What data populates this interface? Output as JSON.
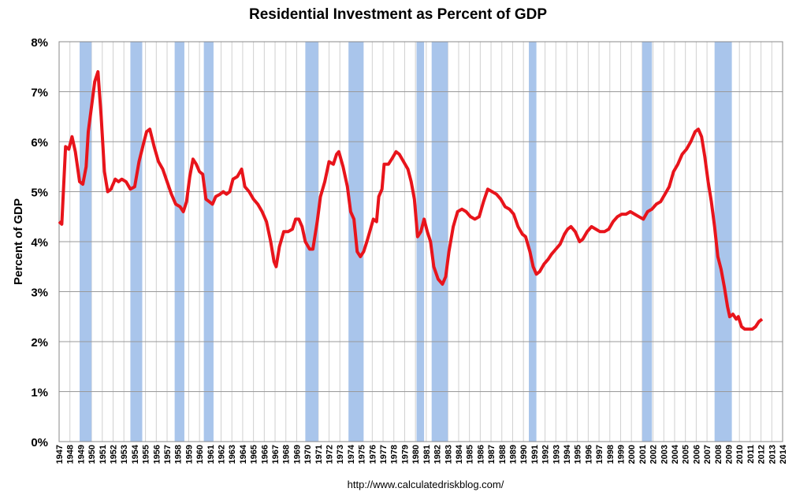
{
  "chart_data": {
    "type": "line",
    "title": "Residential Investment as Percent of GDP",
    "y_label": "Percent of GDP",
    "source": "http://www.calculatedriskblog.com/",
    "color": "#e8141b",
    "band_color": "#a9c5eb",
    "grid": true,
    "xlim": [
      1947,
      2014
    ],
    "ylim": [
      0,
      8
    ],
    "yticks": [
      {
        "value": 0,
        "label": "0%"
      },
      {
        "value": 1,
        "label": "1%"
      },
      {
        "value": 2,
        "label": "2%"
      },
      {
        "value": 3,
        "label": "3%"
      },
      {
        "value": 4,
        "label": "4%"
      },
      {
        "value": 5,
        "label": "5%"
      },
      {
        "value": 6,
        "label": "6%"
      },
      {
        "value": 7,
        "label": "7%"
      },
      {
        "value": 8,
        "label": "8%"
      }
    ],
    "xticks": [
      1947,
      1948,
      1949,
      1950,
      1951,
      1952,
      1953,
      1954,
      1955,
      1956,
      1957,
      1958,
      1959,
      1960,
      1961,
      1962,
      1963,
      1964,
      1965,
      1966,
      1967,
      1968,
      1969,
      1970,
      1971,
      1972,
      1973,
      1974,
      1975,
      1976,
      1977,
      1978,
      1979,
      1980,
      1981,
      1982,
      1983,
      1984,
      1985,
      1986,
      1987,
      1988,
      1989,
      1990,
      1991,
      1992,
      1993,
      1994,
      1995,
      1996,
      1997,
      1998,
      1999,
      2000,
      2001,
      2002,
      2003,
      2004,
      2005,
      2006,
      2007,
      2008,
      2009,
      2010,
      2011,
      2012,
      2013,
      2014
    ],
    "recessions": [
      [
        1948.9,
        1950.0
      ],
      [
        1953.6,
        1954.7
      ],
      [
        1957.7,
        1958.6
      ],
      [
        1960.4,
        1961.3
      ],
      [
        1969.8,
        1971.0
      ],
      [
        1973.8,
        1975.2
      ],
      [
        1980.1,
        1980.8
      ],
      [
        1981.5,
        1983.0
      ],
      [
        1990.5,
        1991.2
      ],
      [
        2001.0,
        2001.9
      ],
      [
        2007.7,
        2009.3
      ]
    ],
    "x": [
      1947.0,
      1947.25,
      1947.6,
      1947.9,
      1948.2,
      1948.5,
      1948.9,
      1949.2,
      1949.5,
      1949.7,
      1950.0,
      1950.3,
      1950.6,
      1950.9,
      1951.2,
      1951.5,
      1951.8,
      1952.2,
      1952.5,
      1952.8,
      1953.2,
      1953.6,
      1954.0,
      1954.4,
      1954.8,
      1955.1,
      1955.4,
      1955.8,
      1956.2,
      1956.6,
      1957.0,
      1957.4,
      1957.8,
      1958.2,
      1958.5,
      1958.8,
      1959.1,
      1959.4,
      1959.7,
      1960.0,
      1960.3,
      1960.6,
      1960.9,
      1961.2,
      1961.5,
      1961.9,
      1962.2,
      1962.5,
      1962.8,
      1963.1,
      1963.5,
      1963.9,
      1964.2,
      1964.6,
      1965.0,
      1965.4,
      1965.8,
      1966.2,
      1966.6,
      1966.9,
      1967.1,
      1967.4,
      1967.8,
      1968.2,
      1968.6,
      1968.9,
      1969.2,
      1969.5,
      1969.8,
      1970.2,
      1970.5,
      1970.9,
      1971.2,
      1971.6,
      1972.0,
      1972.4,
      1972.7,
      1972.9,
      1973.3,
      1973.7,
      1974.0,
      1974.3,
      1974.6,
      1974.9,
      1975.2,
      1975.5,
      1975.9,
      1976.1,
      1976.4,
      1976.6,
      1976.9,
      1977.1,
      1977.5,
      1977.8,
      1978.2,
      1978.5,
      1978.9,
      1979.3,
      1979.6,
      1979.9,
      1980.2,
      1980.5,
      1980.8,
      1981.1,
      1981.4,
      1981.7,
      1982.1,
      1982.5,
      1982.8,
      1983.1,
      1983.5,
      1983.9,
      1984.3,
      1984.7,
      1985.1,
      1985.5,
      1985.9,
      1986.3,
      1986.7,
      1987.1,
      1987.5,
      1987.9,
      1988.3,
      1988.7,
      1989.1,
      1989.5,
      1989.9,
      1990.2,
      1990.6,
      1990.9,
      1991.2,
      1991.5,
      1991.9,
      1992.3,
      1992.6,
      1993.0,
      1993.4,
      1993.8,
      1994.1,
      1994.4,
      1994.8,
      1995.2,
      1995.5,
      1995.9,
      1996.3,
      1996.7,
      1997.1,
      1997.5,
      1997.9,
      1998.3,
      1998.7,
      1999.1,
      1999.5,
      1999.9,
      2000.3,
      2000.7,
      2001.1,
      2001.5,
      2001.9,
      2002.3,
      2002.7,
      2003.1,
      2003.5,
      2003.9,
      2004.3,
      2004.7,
      2005.1,
      2005.5,
      2005.9,
      2006.2,
      2006.5,
      2006.8,
      2007.1,
      2007.4,
      2007.7,
      2008.0,
      2008.3,
      2008.6,
      2008.9,
      2009.1,
      2009.4,
      2009.7,
      2009.9,
      2010.2,
      2010.5,
      2010.8,
      2011.2,
      2011.5,
      2011.8,
      2012.1
    ],
    "values": [
      4.4,
      4.35,
      5.9,
      5.85,
      6.1,
      5.8,
      5.2,
      5.15,
      5.5,
      6.2,
      6.7,
      7.2,
      7.4,
      6.5,
      5.4,
      5.0,
      5.05,
      5.25,
      5.2,
      5.25,
      5.2,
      5.05,
      5.1,
      5.6,
      5.95,
      6.2,
      6.25,
      5.9,
      5.6,
      5.45,
      5.2,
      4.95,
      4.75,
      4.7,
      4.6,
      4.8,
      5.3,
      5.65,
      5.55,
      5.4,
      5.35,
      4.85,
      4.8,
      4.75,
      4.9,
      4.95,
      5.0,
      4.95,
      5.0,
      5.25,
      5.3,
      5.45,
      5.1,
      5.0,
      4.85,
      4.75,
      4.6,
      4.4,
      4.0,
      3.6,
      3.5,
      3.9,
      4.2,
      4.2,
      4.25,
      4.45,
      4.45,
      4.3,
      4.0,
      3.85,
      3.85,
      4.4,
      4.9,
      5.2,
      5.6,
      5.55,
      5.75,
      5.8,
      5.5,
      5.1,
      4.6,
      4.45,
      3.8,
      3.7,
      3.8,
      4.0,
      4.3,
      4.45,
      4.4,
      4.9,
      5.05,
      5.55,
      5.55,
      5.65,
      5.8,
      5.75,
      5.6,
      5.45,
      5.2,
      4.85,
      4.1,
      4.2,
      4.45,
      4.2,
      4.0,
      3.5,
      3.25,
      3.15,
      3.3,
      3.8,
      4.3,
      4.6,
      4.65,
      4.6,
      4.5,
      4.45,
      4.5,
      4.8,
      5.05,
      5.0,
      4.95,
      4.85,
      4.7,
      4.65,
      4.55,
      4.3,
      4.15,
      4.1,
      3.8,
      3.5,
      3.35,
      3.4,
      3.55,
      3.65,
      3.75,
      3.85,
      3.95,
      4.15,
      4.25,
      4.3,
      4.2,
      4.0,
      4.05,
      4.2,
      4.3,
      4.25,
      4.2,
      4.2,
      4.25,
      4.4,
      4.5,
      4.55,
      4.55,
      4.6,
      4.55,
      4.5,
      4.45,
      4.6,
      4.65,
      4.75,
      4.8,
      4.95,
      5.1,
      5.4,
      5.55,
      5.75,
      5.85,
      6.0,
      6.2,
      6.25,
      6.1,
      5.7,
      5.2,
      4.8,
      4.3,
      3.7,
      3.45,
      3.1,
      2.7,
      2.5,
      2.55,
      2.45,
      2.5,
      2.3,
      2.25,
      2.25,
      2.25,
      2.3,
      2.4,
      2.45
    ]
  }
}
